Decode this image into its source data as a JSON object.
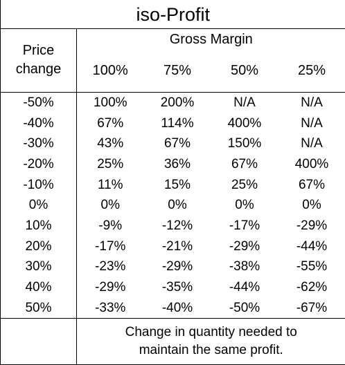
{
  "title": "iso-Profit",
  "gross_margin_label": "Gross Margin",
  "price_change_label_line1": "Price",
  "price_change_label_line2": "change",
  "margin_headers": [
    "100%",
    "75%",
    "50%",
    "25%"
  ],
  "rows": [
    {
      "price": "-50%",
      "values": [
        "100%",
        "200%",
        "N/A",
        "N/A"
      ]
    },
    {
      "price": "-40%",
      "values": [
        "67%",
        "114%",
        "400%",
        "N/A"
      ]
    },
    {
      "price": "-30%",
      "values": [
        "43%",
        "67%",
        "150%",
        "N/A"
      ]
    },
    {
      "price": "-20%",
      "values": [
        "25%",
        "36%",
        "67%",
        "400%"
      ]
    },
    {
      "price": "-10%",
      "values": [
        "11%",
        "15%",
        "25%",
        "67%"
      ]
    },
    {
      "price": "0%",
      "values": [
        "0%",
        "0%",
        "0%",
        "0%"
      ]
    },
    {
      "price": "10%",
      "values": [
        "-9%",
        "-12%",
        "-17%",
        "-29%"
      ]
    },
    {
      "price": "20%",
      "values": [
        "-17%",
        "-21%",
        "-29%",
        "-44%"
      ]
    },
    {
      "price": "30%",
      "values": [
        "-23%",
        "-29%",
        "-38%",
        "-55%"
      ]
    },
    {
      "price": "40%",
      "values": [
        "-29%",
        "-35%",
        "-44%",
        "-62%"
      ]
    },
    {
      "price": "50%",
      "values": [
        "-33%",
        "-40%",
        "-50%",
        "-67%"
      ]
    }
  ],
  "footer_note_line1": "Change in quantity needed to",
  "footer_note_line2": "maintain the same profit."
}
